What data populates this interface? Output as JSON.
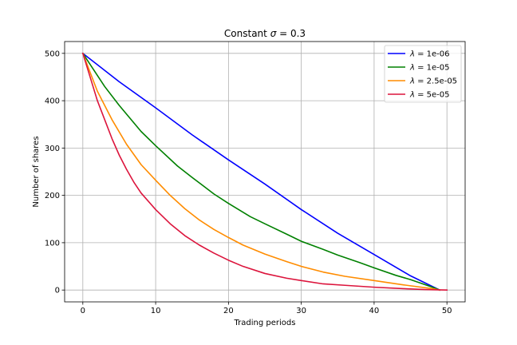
{
  "chart_data": {
    "type": "line",
    "title_prefix": "Constant ",
    "title_symbol": "σ",
    "title_suffix": " = 0.3",
    "xlabel": "Trading periods",
    "ylabel": "Number of shares",
    "xlim": [
      -2.5,
      52.5
    ],
    "ylim": [
      -25,
      525
    ],
    "xticks": [
      0,
      10,
      20,
      30,
      40,
      50
    ],
    "yticks": [
      0,
      100,
      200,
      300,
      400,
      500
    ],
    "grid": true,
    "legend_position": "top-right",
    "legend_symbol": "λ",
    "series": [
      {
        "name": " = 1e-06",
        "color": "#0000ff",
        "x": [
          0,
          5,
          10,
          15,
          20,
          25,
          30,
          35,
          40,
          45,
          49
        ],
        "y": [
          500,
          440,
          385,
          328,
          275,
          224,
          170,
          120,
          75,
          30,
          0
        ]
      },
      {
        "name": " = 1e-05",
        "color": "#008000",
        "x": [
          0,
          3,
          5,
          8,
          10,
          13,
          15,
          18,
          20,
          23,
          25,
          28,
          30,
          33,
          35,
          38,
          40,
          43,
          45,
          48,
          49
        ],
        "y": [
          500,
          430,
          390,
          335,
          305,
          262,
          238,
          203,
          183,
          155,
          140,
          118,
          103,
          86,
          74,
          58,
          47,
          31,
          22,
          6,
          0
        ]
      },
      {
        "name": " = 2.5e-05",
        "color": "#ff8c00",
        "x": [
          0,
          2,
          4,
          6,
          8,
          10,
          12,
          14,
          16,
          18,
          20,
          22,
          25,
          28,
          30,
          33,
          36,
          40,
          44,
          48,
          49
        ],
        "y": [
          500,
          420,
          360,
          308,
          265,
          232,
          200,
          172,
          148,
          128,
          111,
          95,
          76,
          60,
          50,
          38,
          29,
          20,
          11,
          3,
          0
        ]
      },
      {
        "name": " = 5e-05",
        "color": "#dc143c",
        "x": [
          0,
          1,
          2,
          3,
          4,
          5,
          6,
          7,
          8,
          10,
          12,
          14,
          16,
          18,
          20,
          22,
          25,
          28,
          30,
          33,
          36,
          40,
          44,
          47,
          50
        ],
        "y": [
          500,
          450,
          400,
          360,
          320,
          285,
          255,
          228,
          205,
          170,
          140,
          115,
          95,
          78,
          63,
          50,
          35,
          25,
          20,
          13,
          10,
          6,
          3,
          1,
          0
        ]
      }
    ]
  }
}
